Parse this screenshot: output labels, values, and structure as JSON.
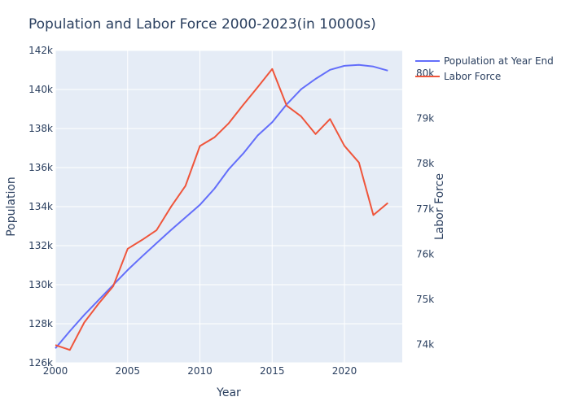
{
  "chart_data": {
    "type": "line",
    "title": "Population and Labor Force 2000-2023(in 10000s)",
    "xlabel": "Year",
    "ylabel": "Population",
    "y2label": "Labor Force",
    "xlim": [
      2000,
      2024
    ],
    "ylim": [
      126000,
      142000
    ],
    "y2lim": [
      73600,
      80500
    ],
    "x_ticks": [
      2000,
      2005,
      2010,
      2015,
      2020
    ],
    "x_tick_labels": [
      "2000",
      "2005",
      "2010",
      "2015",
      "2020"
    ],
    "y_ticks": [
      126000,
      128000,
      130000,
      132000,
      134000,
      136000,
      138000,
      140000,
      142000
    ],
    "y_tick_labels": [
      "126k",
      "128k",
      "130k",
      "132k",
      "134k",
      "136k",
      "138k",
      "140k",
      "142k"
    ],
    "y2_ticks": [
      74000,
      75000,
      76000,
      77000,
      78000,
      79000,
      80000
    ],
    "y2_tick_labels": [
      "74k",
      "75k",
      "76k",
      "77k",
      "78k",
      "79k",
      "80k"
    ],
    "grid": true,
    "legend_position": "top-right",
    "x": [
      2000,
      2001,
      2002,
      2003,
      2004,
      2005,
      2006,
      2007,
      2008,
      2009,
      2010,
      2011,
      2012,
      2013,
      2014,
      2015,
      2016,
      2017,
      2018,
      2019,
      2020,
      2021,
      2022,
      2023
    ],
    "series": [
      {
        "name": "Population at Year End",
        "axis": "left",
        "color": "#636efa",
        "values": [
          126743,
          127627,
          128453,
          129227,
          129988,
          130756,
          131448,
          132129,
          132802,
          133450,
          134091,
          134916,
          135922,
          136726,
          137646,
          138326,
          139232,
          140011,
          140541,
          141008,
          141212,
          141260,
          141175,
          140967
        ]
      },
      {
        "name": "Labor Force",
        "axis": "right",
        "color": "#ef553b",
        "values": [
          73992,
          73884,
          74492,
          74911,
          75290,
          76120,
          76315,
          76531,
          77046,
          77510,
          78388,
          78579,
          78894,
          79300,
          79690,
          80091,
          79282,
          79042,
          78653,
          78985,
          78392,
          78024,
          76863,
          77131
        ]
      }
    ]
  }
}
